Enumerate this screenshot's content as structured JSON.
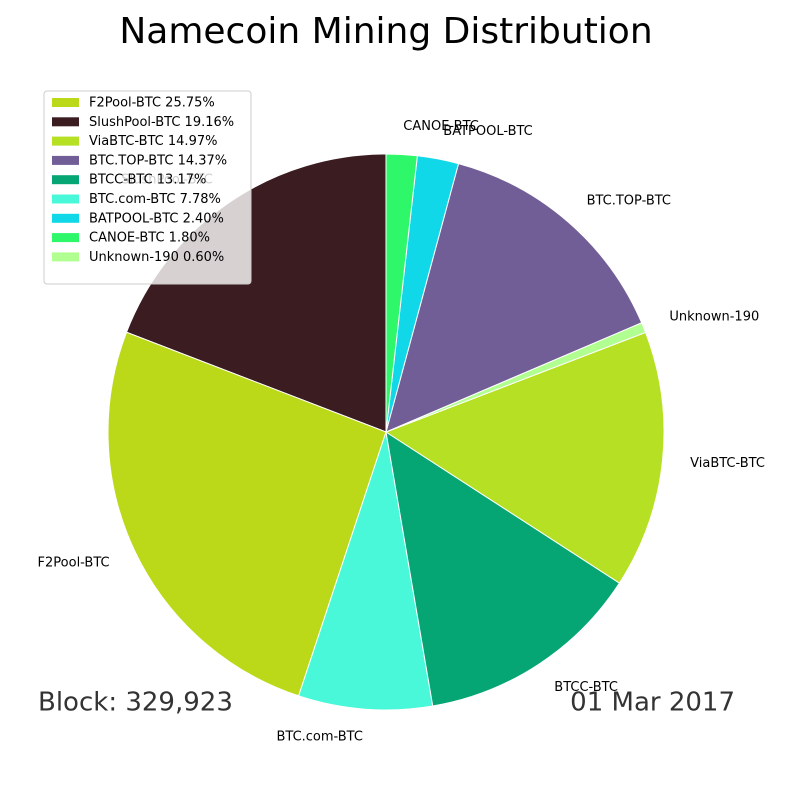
{
  "chart_data": {
    "type": "pie",
    "title": "Namecoin Mining Distribution",
    "categories": [
      "SlushPool-BTC",
      "F2Pool-BTC",
      "BTC.com-BTC",
      "BTCC-BTC",
      "ViaBTC-BTC",
      "Unknown-190",
      "BTC.TOP-BTC",
      "BATPOOL-BTC",
      "CANOE-BTC"
    ],
    "values": [
      19.16,
      25.75,
      7.78,
      13.17,
      14.97,
      0.6,
      14.37,
      2.4,
      1.8
    ],
    "colors": [
      "#3a1c21",
      "#bcd919",
      "#48f8d8",
      "#06a574",
      "#b5e024",
      "#b0ff90",
      "#725e97",
      "#10d8e8",
      "#2ef76a"
    ],
    "legend": [
      {
        "label": "F2Pool-BTC 25.75%",
        "color": "#bcd919"
      },
      {
        "label": "SlushPool-BTC 19.16%",
        "color": "#3a1c21"
      },
      {
        "label": "ViaBTC-BTC 14.97%",
        "color": "#b5e024"
      },
      {
        "label": "BTC.TOP-BTC 14.37%",
        "color": "#725e97"
      },
      {
        "label": "BTCC-BTC 13.17%",
        "color": "#06a574"
      },
      {
        "label": "BTC.com-BTC 7.78%",
        "color": "#48f8d8"
      },
      {
        "label": "BATPOOL-BTC 2.40%",
        "color": "#10d8e8"
      },
      {
        "label": "CANOE-BTC 1.80%",
        "color": "#2ef76a"
      },
      {
        "label": "Unknown-190 0.60%",
        "color": "#b0ff90"
      }
    ],
    "legend_position": "upper left",
    "annotations": [
      "Block: 329,923",
      "01 Mar 2017"
    ]
  }
}
